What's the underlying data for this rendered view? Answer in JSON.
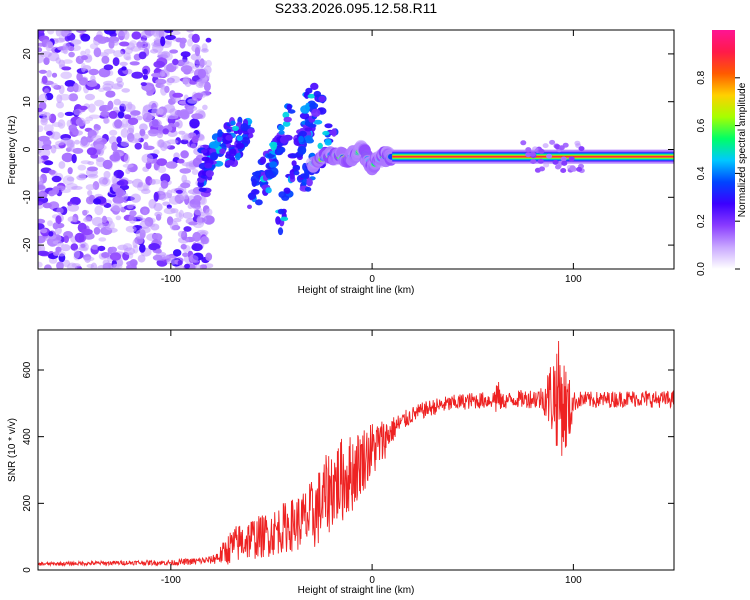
{
  "title": "S233.2026.095.12.58.R11",
  "chart_data": [
    {
      "type": "heatmap",
      "xlabel": "Height of straight line (km)",
      "ylabel": "Frequency (Hz)",
      "xlim": [
        -166,
        150
      ],
      "ylim": [
        -25,
        25
      ],
      "xticks": [
        -100,
        0,
        100
      ],
      "xtick_labels": [
        "-100",
        "0",
        "100"
      ],
      "yticks": [
        -20,
        -10,
        0,
        10,
        20
      ],
      "ytick_labels": [
        "-20",
        "-10",
        "0",
        "10",
        "20"
      ],
      "colorbar": {
        "label": "Normalized spectral amplitude",
        "range": [
          0,
          1
        ],
        "ticks": [
          0.0,
          0.2,
          0.4,
          0.6,
          0.8
        ],
        "tick_labels": [
          "0.0",
          "0.2",
          "0.4",
          "0.6",
          "0.8"
        ],
        "colors": [
          "#ffffff",
          "#c9a8ff",
          "#8a3cff",
          "#3b00ff",
          "#0044ff",
          "#00c8ff",
          "#00ff66",
          "#a6ff00",
          "#ffd000",
          "#ff5a00",
          "#ff1a4a",
          "#ff1493"
        ]
      },
      "dominant_tone": {
        "x_start": 10,
        "x_end": 150,
        "freq": -1.5,
        "amplitude": 0.9
      },
      "ridge_points": [
        [
          -30,
          -3
        ],
        [
          -20,
          -1
        ],
        [
          -12,
          -2
        ],
        [
          -5,
          0
        ],
        [
          0,
          -3.5
        ],
        [
          5,
          -1.5
        ],
        [
          10,
          -1.5
        ]
      ]
    },
    {
      "type": "line",
      "xlabel": "Height of straight line (km)",
      "ylabel": "SNR (10 * v/v)",
      "xlim": [
        -166,
        150
      ],
      "ylim": [
        0,
        720
      ],
      "xticks": [
        -100,
        0,
        100
      ],
      "xtick_labels": [
        "-100",
        "0",
        "100"
      ],
      "yticks": [
        0,
        200,
        400,
        600
      ],
      "ytick_labels": [
        "0",
        "200",
        "400",
        "600"
      ],
      "color": "#ee2222",
      "series": [
        {
          "name": "SNR",
          "x": [
            -166,
            -140,
            -120,
            -100,
            -90,
            -80,
            -75,
            -70,
            -65,
            -60,
            -55,
            -50,
            -45,
            -40,
            -35,
            -30,
            -25,
            -20,
            -15,
            -10,
            -5,
            0,
            5,
            10,
            15,
            20,
            25,
            30,
            35,
            40,
            45,
            50,
            60,
            62,
            64,
            70,
            80,
            85,
            88,
            92,
            95,
            98,
            100,
            104,
            110,
            120,
            130,
            140,
            150
          ],
          "y": [
            18,
            20,
            22,
            22,
            25,
            30,
            45,
            70,
            85,
            95,
            100,
            110,
            125,
            135,
            145,
            160,
            200,
            250,
            270,
            290,
            330,
            360,
            385,
            420,
            445,
            465,
            478,
            488,
            495,
            500,
            505,
            508,
            510,
            525,
            505,
            512,
            515,
            515,
            520,
            530,
            495,
            470,
            505,
            512,
            510,
            512,
            515,
            512,
            512
          ],
          "noise_amplitude": [
            5,
            6,
            7,
            8,
            10,
            12,
            30,
            55,
            60,
            65,
            65,
            70,
            75,
            80,
            90,
            110,
            120,
            130,
            130,
            120,
            100,
            90,
            70,
            40,
            30,
            25,
            25,
            25,
            25,
            25,
            25,
            25,
            25,
            70,
            25,
            25,
            30,
            40,
            100,
            170,
            160,
            110,
            30,
            25,
            25,
            25,
            25,
            25,
            25
          ]
        }
      ]
    }
  ]
}
